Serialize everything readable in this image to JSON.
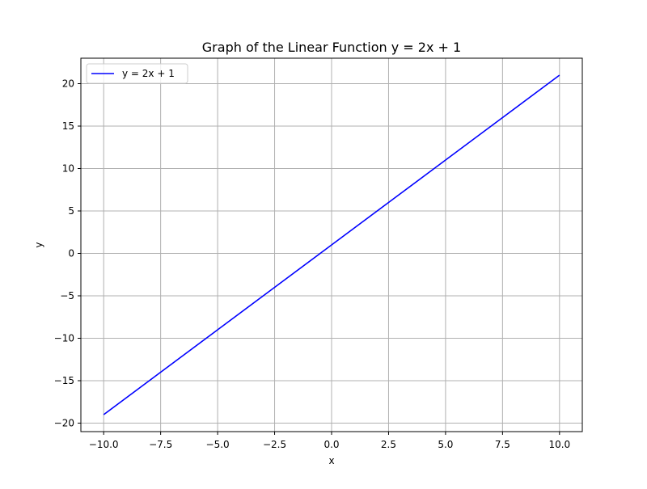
{
  "chart_data": {
    "type": "line",
    "title": "Graph of the Linear Function y = 2x + 1",
    "xlabel": "x",
    "ylabel": "y",
    "xlim": [
      -11,
      11
    ],
    "ylim": [
      -21,
      23
    ],
    "grid": true,
    "legend_position": "top-left",
    "x_ticks": [
      -10.0,
      -7.5,
      -5.0,
      -2.5,
      0.0,
      2.5,
      5.0,
      7.5,
      10.0
    ],
    "x_tick_labels": [
      "−10.0",
      "−7.5",
      "−5.0",
      "−2.5",
      "0.0",
      "2.5",
      "5.0",
      "7.5",
      "10.0"
    ],
    "y_ticks": [
      -20,
      -15,
      -10,
      -5,
      0,
      5,
      10,
      15,
      20
    ],
    "y_tick_labels": [
      "−20",
      "−15",
      "−10",
      "−5",
      "0",
      "5",
      "10",
      "15",
      "20"
    ],
    "series": [
      {
        "name": "y = 2x + 1",
        "color": "#0000ff",
        "x": [
          -10,
          -7.5,
          -5,
          -2.5,
          0,
          2.5,
          5,
          7.5,
          10
        ],
        "y": [
          -19,
          -14,
          -9,
          -4,
          1,
          6,
          11,
          16,
          21
        ]
      }
    ]
  }
}
